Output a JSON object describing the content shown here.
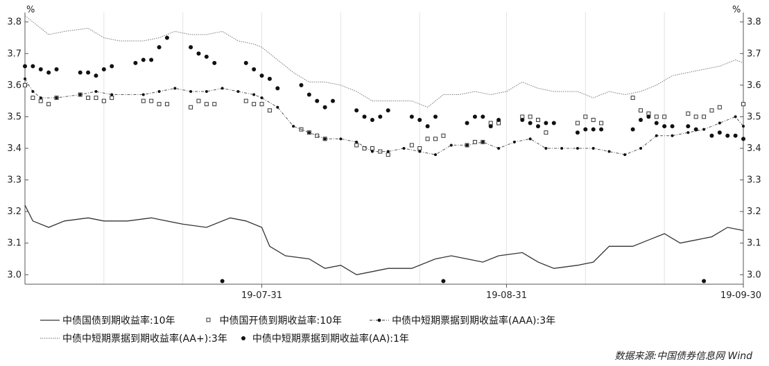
{
  "chart_data": {
    "type": "line",
    "y_unit_left": "%",
    "y_unit_right": "%",
    "ylim": [
      2.97,
      3.83
    ],
    "y_ticks": [
      3.0,
      3.1,
      3.2,
      3.3,
      3.4,
      3.5,
      3.6,
      3.7,
      3.8
    ],
    "y_tick_labels": [
      "3.0",
      "3.1",
      "3.2",
      "3.3",
      "3.4",
      "3.5",
      "3.6",
      "3.7",
      "3.8"
    ],
    "x_ticks": [
      {
        "date": "2019-07-31",
        "label": "19-07-31"
      },
      {
        "date": "2019-08-31",
        "label": "19-08-31"
      },
      {
        "date": "2019-09-30",
        "label": "19-09-30"
      }
    ],
    "x_range": [
      "2019-07-01",
      "2019-09-30"
    ],
    "grid": "vertical-minor",
    "legend_position": "bottom",
    "source": "数据来源:中国债券信息网 Wind",
    "series": [
      {
        "name": "中债国债到期收益率:10年",
        "style": "line-solid",
        "color": "#333333",
        "points": [
          [
            "2019-07-01",
            3.22
          ],
          [
            "2019-07-02",
            3.17
          ],
          [
            "2019-07-04",
            3.15
          ],
          [
            "2019-07-06",
            3.17
          ],
          [
            "2019-07-09",
            3.18
          ],
          [
            "2019-07-11",
            3.17
          ],
          [
            "2019-07-14",
            3.17
          ],
          [
            "2019-07-17",
            3.18
          ],
          [
            "2019-07-21",
            3.16
          ],
          [
            "2019-07-24",
            3.15
          ],
          [
            "2019-07-27",
            3.18
          ],
          [
            "2019-07-29",
            3.17
          ],
          [
            "2019-07-31",
            3.15
          ],
          [
            "2019-08-01",
            3.09
          ],
          [
            "2019-08-03",
            3.06
          ],
          [
            "2019-08-06",
            3.05
          ],
          [
            "2019-08-08",
            3.02
          ],
          [
            "2019-08-10",
            3.03
          ],
          [
            "2019-08-12",
            3.0
          ],
          [
            "2019-08-14",
            3.01
          ],
          [
            "2019-08-16",
            3.02
          ],
          [
            "2019-08-19",
            3.02
          ],
          [
            "2019-08-22",
            3.05
          ],
          [
            "2019-08-24",
            3.06
          ],
          [
            "2019-08-26",
            3.05
          ],
          [
            "2019-08-28",
            3.04
          ],
          [
            "2019-08-30",
            3.06
          ],
          [
            "2019-09-02",
            3.07
          ],
          [
            "2019-09-04",
            3.04
          ],
          [
            "2019-09-06",
            3.02
          ],
          [
            "2019-09-09",
            3.03
          ],
          [
            "2019-09-11",
            3.04
          ],
          [
            "2019-09-13",
            3.09
          ],
          [
            "2019-09-16",
            3.09
          ],
          [
            "2019-09-18",
            3.11
          ],
          [
            "2019-09-20",
            3.13
          ],
          [
            "2019-09-22",
            3.1
          ],
          [
            "2019-09-24",
            3.11
          ],
          [
            "2019-09-26",
            3.12
          ],
          [
            "2019-09-28",
            3.15
          ],
          [
            "2019-09-30",
            3.14
          ]
        ]
      },
      {
        "name": "中债国开债到期收益率:10年",
        "style": "square-markers",
        "color": "#333333",
        "points": [
          [
            "2019-07-01",
            3.6
          ],
          [
            "2019-07-02",
            3.56
          ],
          [
            "2019-07-03",
            3.55
          ],
          [
            "2019-07-04",
            3.54
          ],
          [
            "2019-07-05",
            3.56
          ],
          [
            "2019-07-08",
            3.57
          ],
          [
            "2019-07-09",
            3.56
          ],
          [
            "2019-07-10",
            3.56
          ],
          [
            "2019-07-11",
            3.55
          ],
          [
            "2019-07-12",
            3.56
          ],
          [
            "2019-07-16",
            3.55
          ],
          [
            "2019-07-17",
            3.55
          ],
          [
            "2019-07-18",
            3.54
          ],
          [
            "2019-07-19",
            3.54
          ],
          [
            "2019-07-22",
            3.53
          ],
          [
            "2019-07-23",
            3.55
          ],
          [
            "2019-07-24",
            3.54
          ],
          [
            "2019-07-25",
            3.54
          ],
          [
            "2019-07-29",
            3.55
          ],
          [
            "2019-07-30",
            3.54
          ],
          [
            "2019-07-31",
            3.54
          ],
          [
            "2019-08-01",
            3.52
          ],
          [
            "2019-08-05",
            3.46
          ],
          [
            "2019-08-06",
            3.45
          ],
          [
            "2019-08-07",
            3.44
          ],
          [
            "2019-08-08",
            3.43
          ],
          [
            "2019-08-12",
            3.41
          ],
          [
            "2019-08-13",
            3.4
          ],
          [
            "2019-08-14",
            3.4
          ],
          [
            "2019-08-15",
            3.39
          ],
          [
            "2019-08-16",
            3.38
          ],
          [
            "2019-08-19",
            3.41
          ],
          [
            "2019-08-20",
            3.4
          ],
          [
            "2019-08-21",
            3.43
          ],
          [
            "2019-08-22",
            3.43
          ],
          [
            "2019-08-23",
            3.44
          ],
          [
            "2019-08-26",
            3.41
          ],
          [
            "2019-08-27",
            3.42
          ],
          [
            "2019-08-28",
            3.42
          ],
          [
            "2019-08-29",
            3.48
          ],
          [
            "2019-08-30",
            3.48
          ],
          [
            "2019-09-02",
            3.5
          ],
          [
            "2019-09-03",
            3.5
          ],
          [
            "2019-09-04",
            3.49
          ],
          [
            "2019-09-05",
            3.45
          ],
          [
            "2019-09-09",
            3.48
          ],
          [
            "2019-09-10",
            3.5
          ],
          [
            "2019-09-11",
            3.49
          ],
          [
            "2019-09-12",
            3.48
          ],
          [
            "2019-09-16",
            3.56
          ],
          [
            "2019-09-17",
            3.52
          ],
          [
            "2019-09-18",
            3.51
          ],
          [
            "2019-09-19",
            3.5
          ],
          [
            "2019-09-20",
            3.5
          ],
          [
            "2019-09-23",
            3.51
          ],
          [
            "2019-09-24",
            3.5
          ],
          [
            "2019-09-25",
            3.5
          ],
          [
            "2019-09-26",
            3.52
          ],
          [
            "2019-09-27",
            3.53
          ],
          [
            "2019-09-30",
            3.54
          ]
        ]
      },
      {
        "name": "中债中短期票据到期收益率(AAA):3年",
        "style": "line-dash-dot-markers",
        "color": "#333333",
        "points": [
          [
            "2019-07-01",
            3.62
          ],
          [
            "2019-07-02",
            3.58
          ],
          [
            "2019-07-03",
            3.56
          ],
          [
            "2019-07-05",
            3.56
          ],
          [
            "2019-07-08",
            3.57
          ],
          [
            "2019-07-10",
            3.58
          ],
          [
            "2019-07-12",
            3.57
          ],
          [
            "2019-07-16",
            3.57
          ],
          [
            "2019-07-18",
            3.58
          ],
          [
            "2019-07-20",
            3.59
          ],
          [
            "2019-07-22",
            3.58
          ],
          [
            "2019-07-24",
            3.58
          ],
          [
            "2019-07-26",
            3.59
          ],
          [
            "2019-07-28",
            3.58
          ],
          [
            "2019-07-30",
            3.57
          ],
          [
            "2019-07-31",
            3.56
          ],
          [
            "2019-08-02",
            3.53
          ],
          [
            "2019-08-04",
            3.47
          ],
          [
            "2019-08-06",
            3.45
          ],
          [
            "2019-08-08",
            3.43
          ],
          [
            "2019-08-10",
            3.43
          ],
          [
            "2019-08-12",
            3.42
          ],
          [
            "2019-08-14",
            3.39
          ],
          [
            "2019-08-16",
            3.39
          ],
          [
            "2019-08-18",
            3.4
          ],
          [
            "2019-08-20",
            3.39
          ],
          [
            "2019-08-22",
            3.38
          ],
          [
            "2019-08-24",
            3.41
          ],
          [
            "2019-08-26",
            3.41
          ],
          [
            "2019-08-28",
            3.42
          ],
          [
            "2019-08-30",
            3.4
          ],
          [
            "2019-09-01",
            3.42
          ],
          [
            "2019-09-03",
            3.43
          ],
          [
            "2019-09-05",
            3.4
          ],
          [
            "2019-09-07",
            3.4
          ],
          [
            "2019-09-09",
            3.4
          ],
          [
            "2019-09-11",
            3.4
          ],
          [
            "2019-09-13",
            3.39
          ],
          [
            "2019-09-15",
            3.38
          ],
          [
            "2019-09-17",
            3.4
          ],
          [
            "2019-09-19",
            3.44
          ],
          [
            "2019-09-21",
            3.44
          ],
          [
            "2019-09-23",
            3.45
          ],
          [
            "2019-09-25",
            3.46
          ],
          [
            "2019-09-27",
            3.48
          ],
          [
            "2019-09-29",
            3.5
          ],
          [
            "2019-09-30",
            3.47
          ]
        ]
      },
      {
        "name": "中债中短期票据到期收益率(AA+):3年",
        "style": "line-dotted",
        "color": "#555555",
        "points": [
          [
            "2019-07-01",
            3.82
          ],
          [
            "2019-07-02",
            3.8
          ],
          [
            "2019-07-04",
            3.76
          ],
          [
            "2019-07-06",
            3.77
          ],
          [
            "2019-07-09",
            3.78
          ],
          [
            "2019-07-11",
            3.75
          ],
          [
            "2019-07-13",
            3.74
          ],
          [
            "2019-07-16",
            3.74
          ],
          [
            "2019-07-18",
            3.75
          ],
          [
            "2019-07-20",
            3.77
          ],
          [
            "2019-07-22",
            3.76
          ],
          [
            "2019-07-24",
            3.76
          ],
          [
            "2019-07-26",
            3.77
          ],
          [
            "2019-07-28",
            3.74
          ],
          [
            "2019-07-30",
            3.73
          ],
          [
            "2019-07-31",
            3.72
          ],
          [
            "2019-08-02",
            3.68
          ],
          [
            "2019-08-04",
            3.64
          ],
          [
            "2019-08-06",
            3.61
          ],
          [
            "2019-08-08",
            3.61
          ],
          [
            "2019-08-10",
            3.6
          ],
          [
            "2019-08-12",
            3.58
          ],
          [
            "2019-08-14",
            3.55
          ],
          [
            "2019-08-17",
            3.55
          ],
          [
            "2019-08-19",
            3.55
          ],
          [
            "2019-08-21",
            3.53
          ],
          [
            "2019-08-23",
            3.57
          ],
          [
            "2019-08-25",
            3.57
          ],
          [
            "2019-08-27",
            3.58
          ],
          [
            "2019-08-29",
            3.57
          ],
          [
            "2019-08-31",
            3.58
          ],
          [
            "2019-09-02",
            3.61
          ],
          [
            "2019-09-04",
            3.59
          ],
          [
            "2019-09-06",
            3.58
          ],
          [
            "2019-09-09",
            3.58
          ],
          [
            "2019-09-11",
            3.56
          ],
          [
            "2019-09-13",
            3.58
          ],
          [
            "2019-09-15",
            3.57
          ],
          [
            "2019-09-17",
            3.58
          ],
          [
            "2019-09-19",
            3.6
          ],
          [
            "2019-09-21",
            3.63
          ],
          [
            "2019-09-23",
            3.64
          ],
          [
            "2019-09-25",
            3.65
          ],
          [
            "2019-09-27",
            3.66
          ],
          [
            "2019-09-29",
            3.68
          ],
          [
            "2019-09-30",
            3.67
          ]
        ]
      },
      {
        "name": "中债中短期票据到期收益率(AA):1年",
        "style": "dot-markers",
        "color": "#111111",
        "points": [
          [
            "2019-07-01",
            3.66
          ],
          [
            "2019-07-02",
            3.66
          ],
          [
            "2019-07-03",
            3.65
          ],
          [
            "2019-07-04",
            3.64
          ],
          [
            "2019-07-05",
            3.65
          ],
          [
            "2019-07-08",
            3.64
          ],
          [
            "2019-07-09",
            3.64
          ],
          [
            "2019-07-10",
            3.63
          ],
          [
            "2019-07-11",
            3.65
          ],
          [
            "2019-07-12",
            3.66
          ],
          [
            "2019-07-15",
            3.67
          ],
          [
            "2019-07-16",
            3.68
          ],
          [
            "2019-07-17",
            3.68
          ],
          [
            "2019-07-18",
            3.72
          ],
          [
            "2019-07-19",
            3.75
          ],
          [
            "2019-07-22",
            3.72
          ],
          [
            "2019-07-23",
            3.7
          ],
          [
            "2019-07-24",
            3.69
          ],
          [
            "2019-07-25",
            3.67
          ],
          [
            "2019-07-26",
            2.98
          ],
          [
            "2019-07-29",
            3.67
          ],
          [
            "2019-07-30",
            3.65
          ],
          [
            "2019-07-31",
            3.63
          ],
          [
            "2019-08-01",
            3.62
          ],
          [
            "2019-08-02",
            3.59
          ],
          [
            "2019-08-05",
            3.6
          ],
          [
            "2019-08-06",
            3.57
          ],
          [
            "2019-08-07",
            3.55
          ],
          [
            "2019-08-08",
            3.53
          ],
          [
            "2019-08-09",
            3.55
          ],
          [
            "2019-08-12",
            3.52
          ],
          [
            "2019-08-13",
            3.5
          ],
          [
            "2019-08-14",
            3.49
          ],
          [
            "2019-08-15",
            3.5
          ],
          [
            "2019-08-16",
            3.52
          ],
          [
            "2019-08-19",
            3.5
          ],
          [
            "2019-08-20",
            3.49
          ],
          [
            "2019-08-21",
            3.47
          ],
          [
            "2019-08-22",
            3.5
          ],
          [
            "2019-08-23",
            2.98
          ],
          [
            "2019-08-26",
            3.48
          ],
          [
            "2019-08-27",
            3.5
          ],
          [
            "2019-08-28",
            3.5
          ],
          [
            "2019-08-29",
            3.47
          ],
          [
            "2019-08-30",
            3.49
          ],
          [
            "2019-09-02",
            3.49
          ],
          [
            "2019-09-03",
            3.48
          ],
          [
            "2019-09-04",
            3.47
          ],
          [
            "2019-09-05",
            3.48
          ],
          [
            "2019-09-06",
            3.48
          ],
          [
            "2019-09-09",
            3.45
          ],
          [
            "2019-09-10",
            3.46
          ],
          [
            "2019-09-11",
            3.46
          ],
          [
            "2019-09-12",
            3.46
          ],
          [
            "2019-09-16",
            3.46
          ],
          [
            "2019-09-17",
            3.49
          ],
          [
            "2019-09-18",
            3.5
          ],
          [
            "2019-09-19",
            3.48
          ],
          [
            "2019-09-20",
            3.47
          ],
          [
            "2019-09-21",
            3.47
          ],
          [
            "2019-09-23",
            3.47
          ],
          [
            "2019-09-24",
            3.46
          ],
          [
            "2019-09-25",
            2.98
          ],
          [
            "2019-09-26",
            3.44
          ],
          [
            "2019-09-27",
            3.45
          ],
          [
            "2019-09-28",
            3.44
          ],
          [
            "2019-09-29",
            3.44
          ],
          [
            "2019-09-30",
            3.43
          ]
        ]
      }
    ]
  }
}
